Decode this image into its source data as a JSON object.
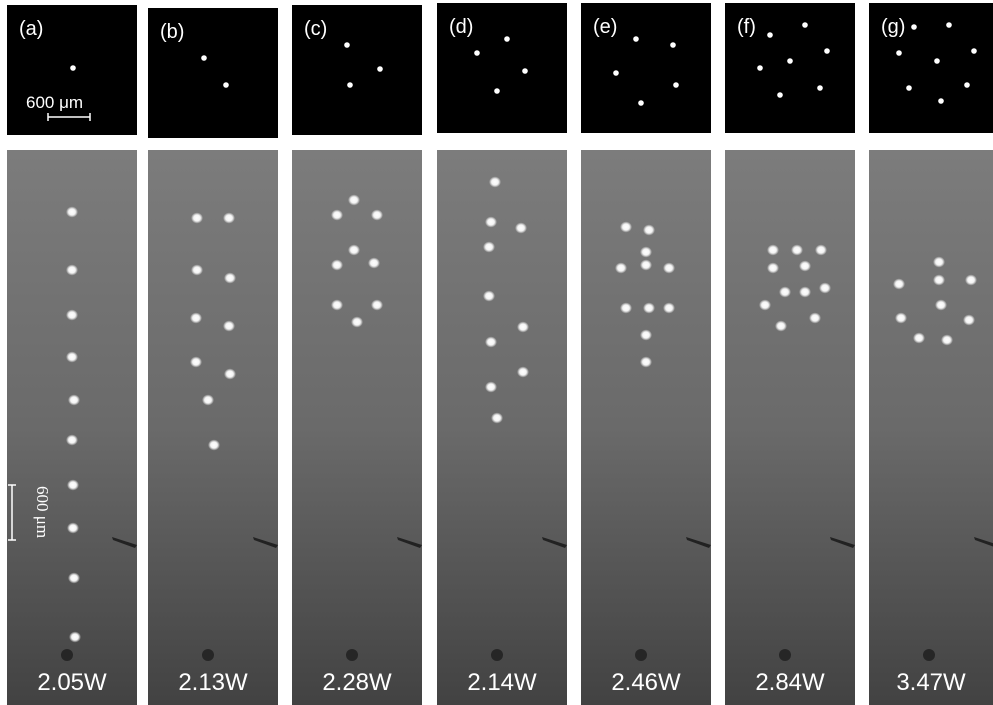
{
  "panels": [
    {
      "label": "(a)",
      "power": "2.05W"
    },
    {
      "label": "(b)",
      "power": "2.13W"
    },
    {
      "label": "(c)",
      "power": "2.28W"
    },
    {
      "label": "(d)",
      "power": "2.14W"
    },
    {
      "label": "(e)",
      "power": "2.46W"
    },
    {
      "label": "(f)",
      "power": "2.84W"
    },
    {
      "label": "(g)",
      "power": "3.47W"
    }
  ],
  "scale_bar_top": "600 μm",
  "scale_bar_side": "600 μm"
}
